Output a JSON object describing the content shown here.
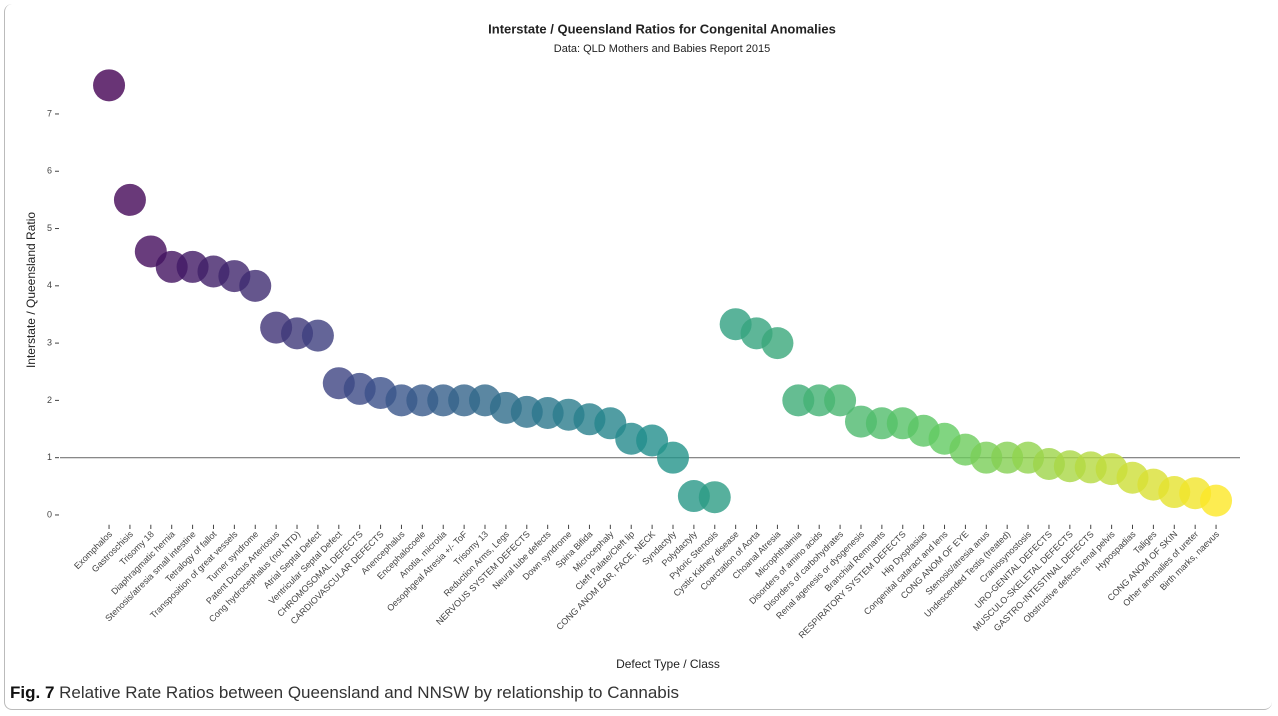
{
  "chart_data": {
    "type": "scatter",
    "title": "Interstate / Queensland Ratios for Congenital Anomalies",
    "subtitle": "Data: QLD Mothers and Babies Report 2015",
    "x_label": "Defect Type / Class",
    "y_label": "Interstate / Queensland Ratio",
    "categories": [
      "Exomphalos",
      "Gastroschisis",
      "Trisomy 18",
      "Diaphragmatic hernia",
      "Stenosis/atresia small intestine",
      "Tetralogy of fallot",
      "Transposition of great vessels",
      "Turner syndrome",
      "Patent Ductus Arteriosus",
      "Cong hydrocephalus (not NTD)",
      "Atrial Septal Defect",
      "Ventricular Septal Defect",
      "CHROMOSOMAL DEFECTS",
      "CARDIOVASCULAR DEFECTS",
      "Anencephalus",
      "Encephalocoele",
      "Anotia, microtia",
      "Oesophgeal Atresia +/- ToF",
      "Trisomy 13",
      "Reduction Arms, Legs",
      "NERVOUS SYSTEM DEFECTS",
      "Neural tube defects",
      "Down syndrome",
      "Spina Bifida",
      "Microcephaly",
      "Cleft Palate/Cleft lip",
      "CONG ANOM EAR, FACE, NECK",
      "Syndactyly",
      "Polydactyly",
      "Pyloric Stenosis",
      "Cystic Kidney disease",
      "Coarctation of Aorta",
      "Choanal Atresia",
      "Microphthalmia",
      "Disorders of amino acids",
      "Disorders of carbohydrates",
      "Renal agenesis or dysgenesis",
      "Branchial Remnants",
      "RESPIRATORY SYSTEM DEFECTS",
      "Hip Dysplasias",
      "Congenital cataract and lens",
      "CONG ANOM OF EYE",
      "Stenosis/atresia anus",
      "Undescended Testis (treated)",
      "Craniosynostosis",
      "URO-GENITAL DEFECTS",
      "MUSCULO-SKELETAL DEFECTS",
      "GASTRO-INTESTINAL DEFECTS",
      "Obstructive defects renal pelvis",
      "Hypospadias",
      "Taliges",
      "CONG ANOM OF SKIN",
      "Other anomalies of ureter",
      "Birth marks, naevus"
    ],
    "values": [
      7.5,
      5.5,
      4.6,
      4.33,
      4.33,
      4.25,
      4.17,
      4.0,
      3.27,
      3.17,
      3.13,
      2.3,
      2.2,
      2.13,
      2.0,
      2.0,
      2.0,
      2.0,
      2.0,
      1.87,
      1.8,
      1.78,
      1.75,
      1.67,
      1.6,
      1.33,
      1.3,
      1.0,
      0.33,
      0.31,
      3.33,
      3.17,
      3.0,
      2.0,
      2.0,
      2.0,
      1.63,
      1.6,
      1.6,
      1.47,
      1.33,
      1.14,
      1.0,
      1.0,
      1.0,
      0.89,
      0.85,
      0.83,
      0.8,
      0.65,
      0.53,
      0.4,
      0.38,
      0.25
    ],
    "color_scale": [
      "#440154",
      "#3b528b",
      "#21918c",
      "#5ec962",
      "#fde725"
    ],
    "reference_line": 1,
    "ylim": [
      -0.17,
      7.9
    ],
    "yticks": [
      0,
      1,
      2,
      3,
      4,
      5,
      6,
      7
    ]
  },
  "caption": {
    "label": "Fig. 7",
    "text": "Relative Rate Ratios between Queensland and NNSW by relationship to Cannabis"
  }
}
